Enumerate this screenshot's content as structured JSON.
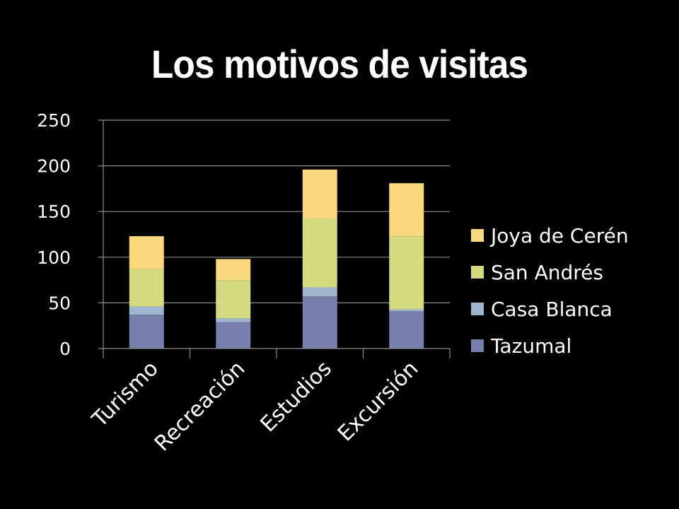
{
  "title": "Los motivos de visitas",
  "chart_data": {
    "type": "bar",
    "stacked": true,
    "categories": [
      "Turismo",
      "Recreación",
      "Estudios",
      "Excursión"
    ],
    "ylim": [
      0,
      250
    ],
    "yticks": [
      0,
      50,
      100,
      150,
      200,
      250
    ],
    "grid": true,
    "legend_position": "right",
    "series": [
      {
        "name": "Tazumal",
        "color": "#7780ac",
        "values": [
          37,
          29,
          57,
          41
        ]
      },
      {
        "name": "Casa Blanca",
        "color": "#9fb6cd",
        "values": [
          9,
          4,
          10,
          2
        ]
      },
      {
        "name": "San Andrés",
        "color": "#d4da7f",
        "values": [
          41,
          42,
          75,
          80
        ]
      },
      {
        "name": "Joya de Cerén",
        "color": "#fad97e",
        "values": [
          36,
          23,
          54,
          58
        ]
      }
    ]
  }
}
